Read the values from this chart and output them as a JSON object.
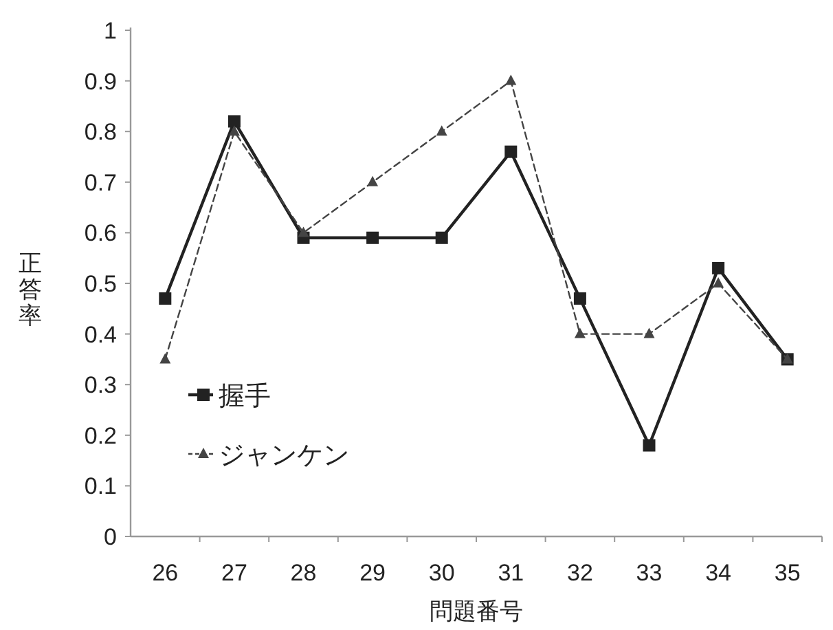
{
  "chart_data": {
    "type": "line",
    "xlabel": "問題番号",
    "ylabel": "正答率",
    "categories": [
      "26",
      "27",
      "28",
      "29",
      "30",
      "31",
      "32",
      "33",
      "34",
      "35"
    ],
    "series": [
      {
        "name": "握手",
        "color": "#222222",
        "marker": "square",
        "line_style": "solid",
        "values": [
          0.47,
          0.82,
          0.59,
          0.59,
          0.59,
          0.76,
          0.47,
          0.18,
          0.53,
          0.35
        ]
      },
      {
        "name": "ジャンケン",
        "color": "#444444",
        "marker": "triangle",
        "line_style": "dashed",
        "values": [
          0.35,
          0.8,
          0.6,
          0.7,
          0.8,
          0.9,
          0.4,
          0.4,
          0.5,
          0.35
        ]
      }
    ],
    "ylim": [
      0,
      1
    ],
    "yticks": [
      0,
      0.1,
      0.2,
      0.3,
      0.4,
      0.5,
      0.6,
      0.7,
      0.8,
      0.9,
      1
    ],
    "grid": false,
    "legend": "left"
  }
}
